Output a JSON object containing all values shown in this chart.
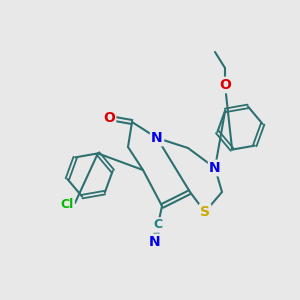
{
  "bg_color": "#e8e8e8",
  "bond_color": "#2d7070",
  "bond_lw": 1.5,
  "atom_colors": {
    "N": "#0000ee",
    "S": "#ccaa00",
    "O": "#dd0000",
    "Cl": "#00bb00",
    "C": "#1a8080",
    "default": "#2d7070"
  },
  "font_size": 9,
  "figsize": [
    3.0,
    3.0
  ],
  "dpi": 100
}
